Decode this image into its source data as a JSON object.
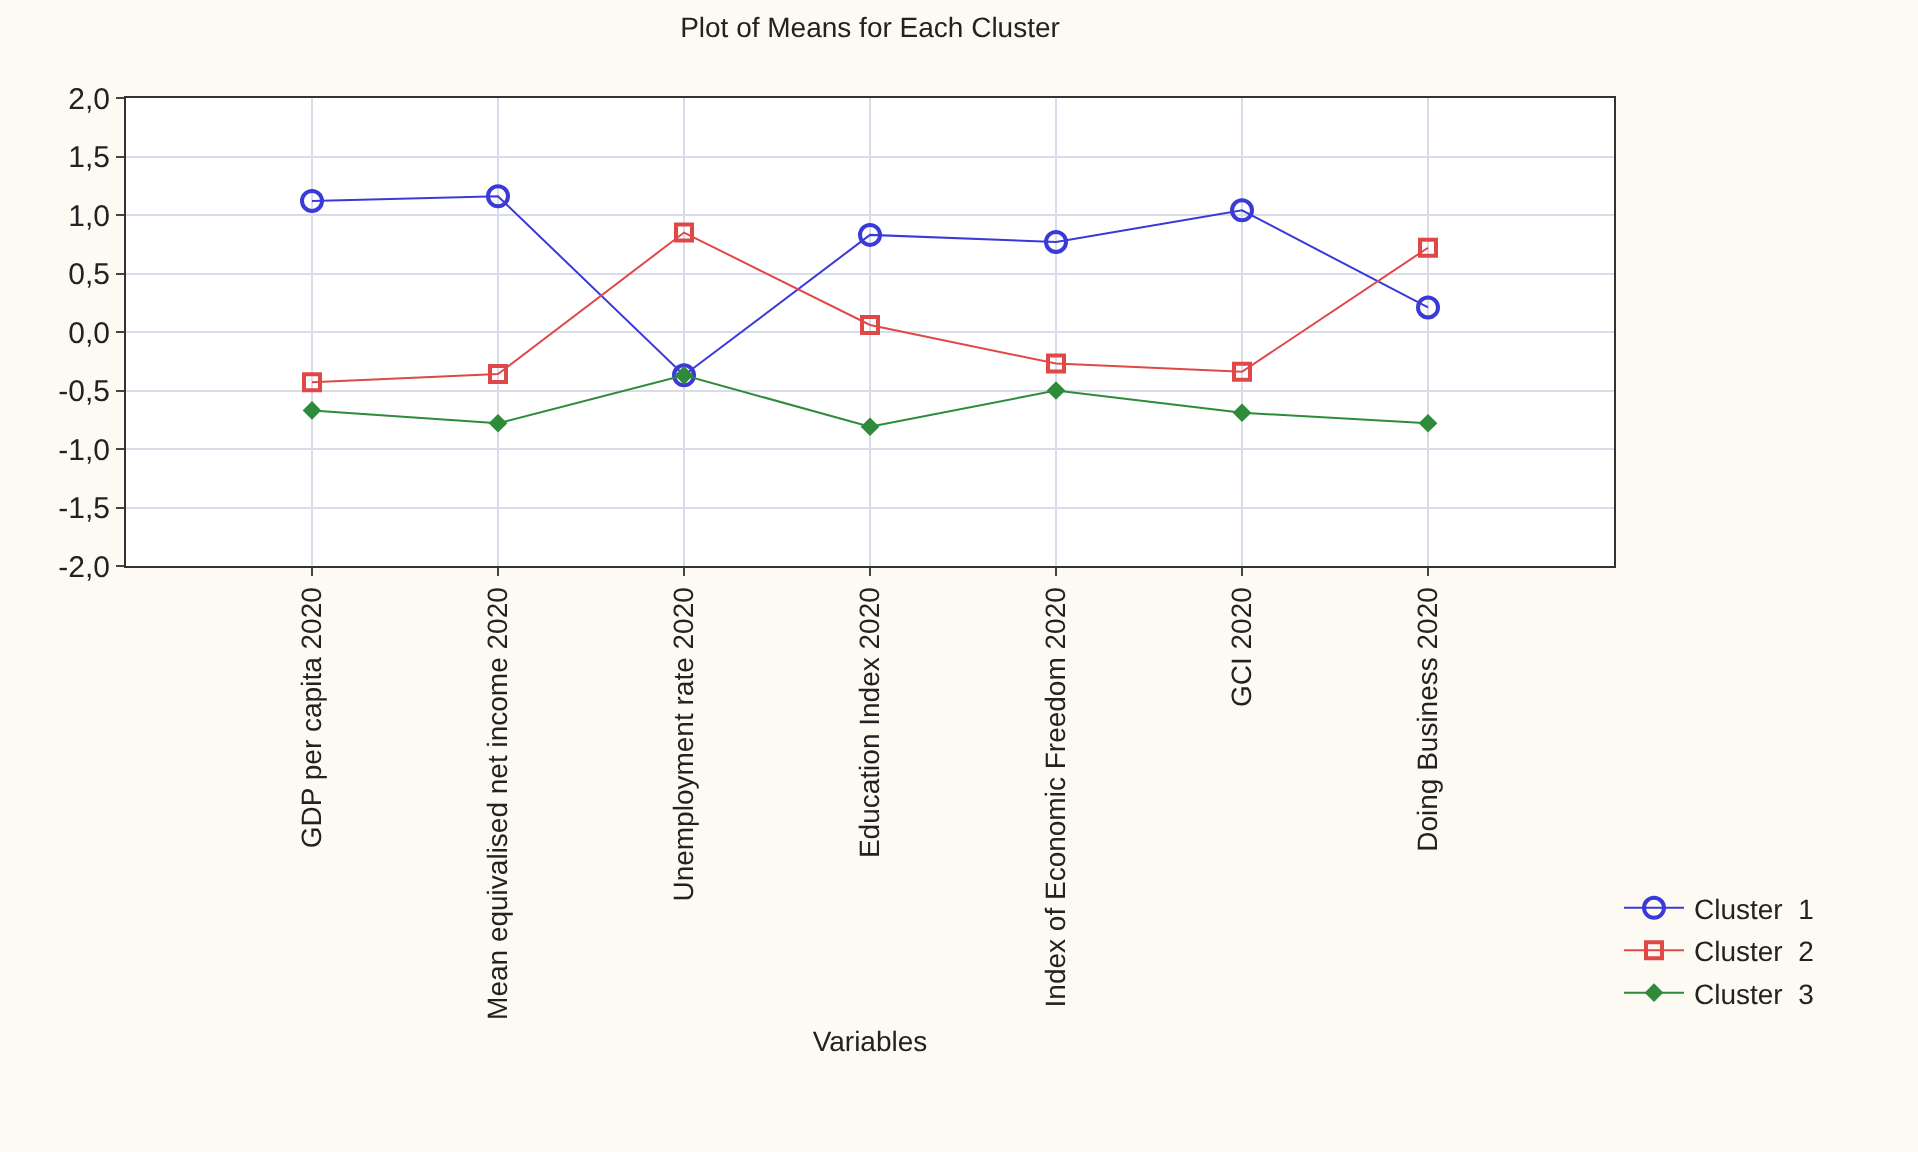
{
  "chart_data": {
    "type": "line",
    "title": "Plot of Means for Each Cluster",
    "xlabel": "Variables",
    "categories": [
      "GDP per capita 2020",
      "Mean equivalised net income 2020",
      "Unemployment rate 2020",
      "Education Index 2020",
      "Index of Economic Freedom 2020",
      "GCI 2020",
      "Doing Business 2020"
    ],
    "series": [
      {
        "name": "Cluster  1",
        "color": "#3a3ad8",
        "marker": "circle",
        "values": [
          1.12,
          1.16,
          -0.37,
          0.83,
          0.77,
          1.04,
          0.21
        ]
      },
      {
        "name": "Cluster  2",
        "color": "#e04848",
        "marker": "square",
        "values": [
          -0.43,
          -0.36,
          0.85,
          0.06,
          -0.27,
          -0.34,
          0.72
        ]
      },
      {
        "name": "Cluster  3",
        "color": "#2e8b3a",
        "marker": "diamond",
        "values": [
          -0.67,
          -0.78,
          -0.37,
          -0.81,
          -0.5,
          -0.69,
          -0.78
        ]
      }
    ],
    "ylim": [
      -2,
      2
    ],
    "yticks": [
      {
        "value": 2,
        "label": "2,0"
      },
      {
        "value": 1.5,
        "label": "1,5"
      },
      {
        "value": 1,
        "label": "1,0"
      },
      {
        "value": 0.5,
        "label": "0,5"
      },
      {
        "value": 0,
        "label": "0,0"
      },
      {
        "value": -0.5,
        "label": "-0,5"
      },
      {
        "value": -1,
        "label": "-1,0"
      },
      {
        "value": -1.5,
        "label": "-1,5"
      },
      {
        "value": -2,
        "label": "-2,0"
      }
    ],
    "grid": true,
    "legend": "bottom right",
    "line_style": "solid"
  }
}
